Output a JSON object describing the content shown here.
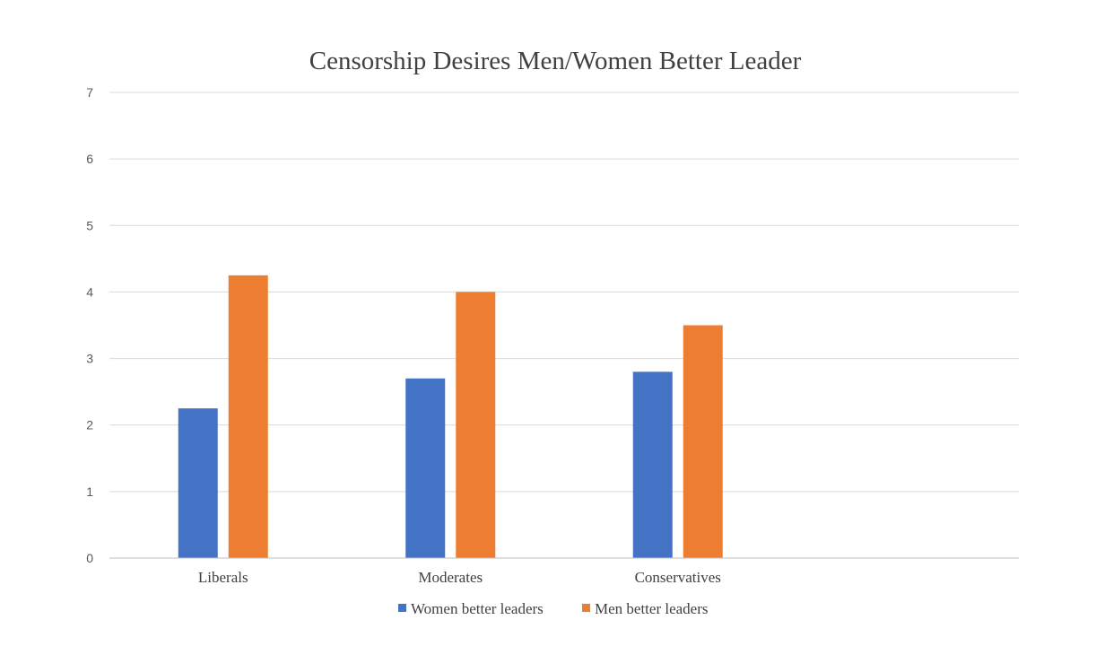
{
  "chart_data": {
    "type": "bar",
    "title": "Censorship Desires Men/Women Better Leader",
    "xlabel": "",
    "ylabel": "",
    "ylim": [
      0,
      7
    ],
    "yticks": [
      "0",
      "1",
      "2",
      "3",
      "4",
      "5",
      "6",
      "7"
    ],
    "grid": true,
    "legend_position": "bottom",
    "categories": [
      "Liberals",
      "Moderates",
      "Conservatives",
      ""
    ],
    "series": [
      {
        "name": "Women better leaders",
        "color": "#4472C4",
        "values": [
          2.25,
          2.7,
          2.8,
          null
        ]
      },
      {
        "name": "Men better leaders",
        "color": "#ED7D31",
        "values": [
          4.25,
          4.0,
          3.5,
          null
        ]
      }
    ]
  }
}
